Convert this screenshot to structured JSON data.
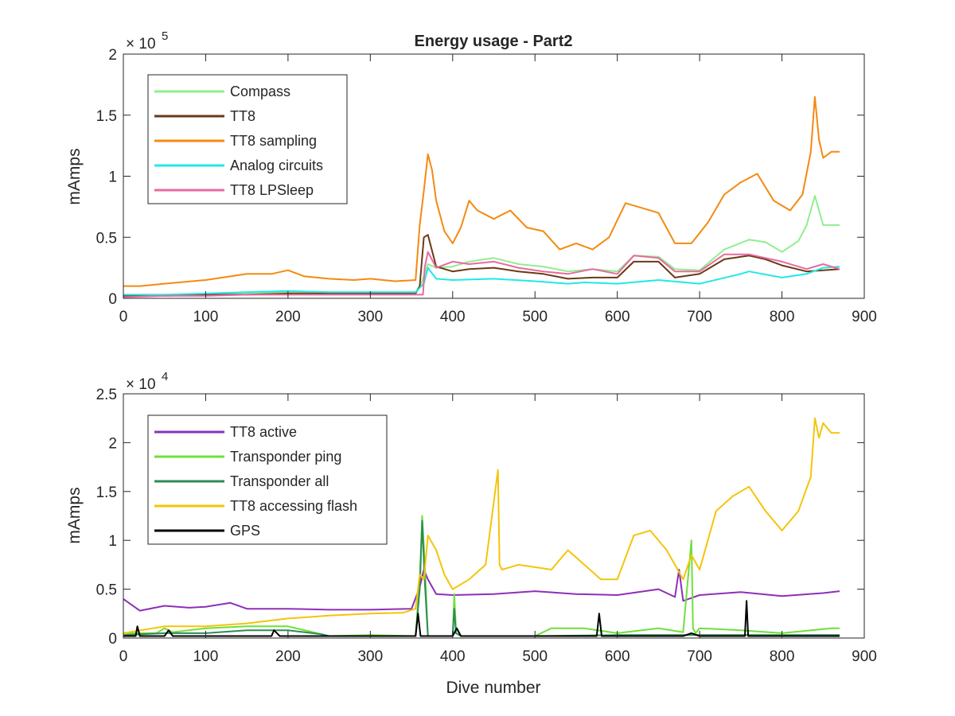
{
  "chart_data": [
    {
      "type": "line",
      "title": "Energy usage - Part2",
      "xlabel": "",
      "ylabel": "mAmps",
      "y_exponent_label": "× 10",
      "y_exponent_power": "5",
      "xlim": [
        0,
        900
      ],
      "ylim": [
        0,
        2
      ],
      "x_ticks": [
        "0",
        "100",
        "200",
        "300",
        "400",
        "500",
        "600",
        "700",
        "800",
        "900"
      ],
      "y_ticks": [
        "0",
        "0.5",
        "1",
        "1.5",
        "2"
      ],
      "grid": false,
      "legend_position": "top-left",
      "series": [
        {
          "name": "Compass",
          "color": "#90ee90",
          "x": [
            0,
            50,
            100,
            150,
            200,
            250,
            300,
            355,
            362,
            370,
            380,
            400,
            420,
            450,
            480,
            510,
            540,
            570,
            600,
            620,
            650,
            670,
            700,
            730,
            760,
            780,
            800,
            820,
            830,
            840,
            850,
            870
          ],
          "y": [
            0.02,
            0.03,
            0.03,
            0.04,
            0.05,
            0.05,
            0.05,
            0.05,
            0.12,
            0.28,
            0.25,
            0.26,
            0.3,
            0.33,
            0.28,
            0.26,
            0.22,
            0.24,
            0.22,
            0.35,
            0.34,
            0.24,
            0.23,
            0.4,
            0.48,
            0.46,
            0.38,
            0.47,
            0.6,
            0.84,
            0.6,
            0.6
          ]
        },
        {
          "name": "TT8",
          "color": "#6a3a14",
          "x": [
            0,
            50,
            100,
            150,
            200,
            250,
            300,
            355,
            360,
            365,
            370,
            380,
            400,
            420,
            450,
            480,
            510,
            540,
            570,
            600,
            620,
            650,
            670,
            700,
            730,
            760,
            780,
            800,
            830,
            850,
            870
          ],
          "y": [
            0.02,
            0.02,
            0.03,
            0.03,
            0.04,
            0.04,
            0.04,
            0.04,
            0.1,
            0.5,
            0.52,
            0.26,
            0.22,
            0.24,
            0.25,
            0.22,
            0.2,
            0.16,
            0.17,
            0.17,
            0.3,
            0.3,
            0.17,
            0.2,
            0.32,
            0.35,
            0.32,
            0.27,
            0.22,
            0.23,
            0.24
          ]
        },
        {
          "name": "TT8 sampling",
          "color": "#f48a10",
          "x": [
            0,
            20,
            50,
            100,
            130,
            150,
            180,
            200,
            220,
            250,
            280,
            300,
            330,
            355,
            360,
            365,
            370,
            375,
            380,
            390,
            400,
            410,
            420,
            430,
            450,
            470,
            490,
            510,
            530,
            550,
            570,
            590,
            610,
            630,
            650,
            670,
            690,
            710,
            730,
            750,
            770,
            790,
            810,
            825,
            835,
            840,
            845,
            850,
            860,
            870
          ],
          "y": [
            0.1,
            0.1,
            0.12,
            0.15,
            0.18,
            0.2,
            0.2,
            0.23,
            0.18,
            0.16,
            0.15,
            0.16,
            0.14,
            0.15,
            0.6,
            0.88,
            1.18,
            1.05,
            0.8,
            0.55,
            0.45,
            0.58,
            0.8,
            0.72,
            0.65,
            0.72,
            0.58,
            0.55,
            0.4,
            0.45,
            0.4,
            0.5,
            0.78,
            0.74,
            0.7,
            0.45,
            0.45,
            0.62,
            0.85,
            0.95,
            1.02,
            0.8,
            0.72,
            0.85,
            1.2,
            1.65,
            1.3,
            1.15,
            1.2,
            1.2
          ]
        },
        {
          "name": "Analog circuits",
          "color": "#22e8e8",
          "x": [
            0,
            50,
            100,
            150,
            200,
            250,
            300,
            355,
            365,
            370,
            380,
            400,
            450,
            500,
            540,
            560,
            600,
            650,
            700,
            750,
            760,
            800,
            830,
            850,
            870
          ],
          "y": [
            0.03,
            0.03,
            0.04,
            0.05,
            0.06,
            0.05,
            0.05,
            0.05,
            0.12,
            0.25,
            0.16,
            0.15,
            0.16,
            0.14,
            0.12,
            0.13,
            0.12,
            0.15,
            0.12,
            0.2,
            0.22,
            0.17,
            0.2,
            0.25,
            0.26
          ]
        },
        {
          "name": "TT8 LPSleep",
          "color": "#e86aa0",
          "x": [
            0,
            50,
            100,
            150,
            200,
            250,
            300,
            355,
            364,
            366,
            370,
            380,
            400,
            420,
            450,
            480,
            510,
            540,
            570,
            600,
            620,
            650,
            670,
            700,
            730,
            760,
            780,
            800,
            830,
            850,
            870
          ],
          "y": [
            0.01,
            0.02,
            0.02,
            0.03,
            0.03,
            0.03,
            0.03,
            0.03,
            0.03,
            0.25,
            0.38,
            0.25,
            0.3,
            0.28,
            0.3,
            0.25,
            0.22,
            0.2,
            0.24,
            0.2,
            0.35,
            0.33,
            0.22,
            0.22,
            0.36,
            0.36,
            0.33,
            0.3,
            0.24,
            0.28,
            0.24
          ]
        }
      ]
    },
    {
      "type": "line",
      "title": "",
      "xlabel": "Dive number",
      "ylabel": "mAmps",
      "y_exponent_label": "× 10",
      "y_exponent_power": "4",
      "xlim": [
        0,
        900
      ],
      "ylim": [
        0,
        2.5
      ],
      "x_ticks": [
        "0",
        "100",
        "200",
        "300",
        "400",
        "500",
        "600",
        "700",
        "800",
        "900"
      ],
      "y_ticks": [
        "0",
        "0.5",
        "1",
        "1.5",
        "2",
        "2.5"
      ],
      "grid": false,
      "legend_position": "top-left",
      "series": [
        {
          "name": "TT8 active",
          "color": "#8e2fb8",
          "x": [
            0,
            20,
            50,
            80,
            100,
            130,
            150,
            200,
            250,
            300,
            350,
            360,
            365,
            370,
            380,
            400,
            450,
            500,
            550,
            600,
            650,
            670,
            675,
            680,
            700,
            750,
            800,
            850,
            870
          ],
          "y": [
            0.4,
            0.28,
            0.33,
            0.31,
            0.32,
            0.36,
            0.3,
            0.3,
            0.29,
            0.29,
            0.3,
            0.52,
            0.7,
            0.6,
            0.45,
            0.44,
            0.45,
            0.48,
            0.45,
            0.44,
            0.5,
            0.42,
            0.7,
            0.38,
            0.44,
            0.47,
            0.43,
            0.46,
            0.48
          ]
        },
        {
          "name": "Transponder ping",
          "color": "#6fe03a",
          "x": [
            0,
            40,
            50,
            60,
            100,
            150,
            200,
            250,
            300,
            355,
            360,
            363,
            366,
            370,
            380,
            400,
            402,
            404,
            410,
            420,
            430,
            500,
            520,
            560,
            600,
            650,
            680,
            690,
            692,
            695,
            700,
            750,
            800,
            860,
            870
          ],
          "y": [
            0.05,
            0.05,
            0.1,
            0.06,
            0.1,
            0.12,
            0.12,
            0.02,
            0.03,
            0.02,
            0.6,
            1.25,
            0.8,
            0.02,
            0.02,
            0.02,
            0.45,
            0.1,
            0.02,
            0.02,
            0.02,
            0.02,
            0.1,
            0.1,
            0.05,
            0.1,
            0.06,
            1.0,
            0.1,
            0.05,
            0.1,
            0.08,
            0.05,
            0.1,
            0.1
          ]
        },
        {
          "name": "Transponder all",
          "color": "#2e8b57",
          "x": [
            0,
            50,
            100,
            150,
            200,
            240,
            250,
            300,
            355,
            360,
            363,
            366,
            370,
            400,
            402,
            404,
            410,
            500,
            600,
            700,
            800,
            870
          ],
          "y": [
            0.03,
            0.05,
            0.05,
            0.08,
            0.08,
            0.04,
            0.02,
            0.02,
            0.02,
            0.5,
            1.2,
            0.6,
            0.02,
            0.02,
            0.3,
            0.05,
            0.02,
            0.02,
            0.03,
            0.03,
            0.03,
            0.03
          ]
        },
        {
          "name": "TT8 accessing flash",
          "color": "#f5c40a",
          "x": [
            0,
            50,
            100,
            150,
            200,
            250,
            300,
            340,
            355,
            360,
            365,
            370,
            380,
            390,
            400,
            420,
            440,
            455,
            457,
            460,
            480,
            520,
            540,
            580,
            600,
            620,
            640,
            660,
            680,
            690,
            700,
            720,
            740,
            760,
            780,
            800,
            820,
            835,
            840,
            845,
            850,
            860,
            870
          ],
          "y": [
            0.05,
            0.12,
            0.12,
            0.15,
            0.2,
            0.23,
            0.25,
            0.26,
            0.3,
            0.65,
            0.6,
            1.05,
            0.9,
            0.65,
            0.5,
            0.6,
            0.75,
            1.72,
            0.75,
            0.7,
            0.75,
            0.7,
            0.9,
            0.6,
            0.6,
            1.05,
            1.1,
            0.9,
            0.6,
            0.85,
            0.7,
            1.3,
            1.45,
            1.55,
            1.3,
            1.1,
            1.3,
            1.65,
            2.25,
            2.05,
            2.2,
            2.1,
            2.1
          ]
        },
        {
          "name": "GPS",
          "color": "#000000",
          "x": [
            0,
            15,
            17,
            20,
            50,
            55,
            60,
            100,
            150,
            180,
            183,
            190,
            250,
            300,
            355,
            358,
            361,
            365,
            370,
            400,
            405,
            410,
            500,
            560,
            575,
            578,
            581,
            600,
            680,
            690,
            700,
            755,
            757,
            759,
            800,
            870
          ],
          "y": [
            0.02,
            0.02,
            0.12,
            0.02,
            0.02,
            0.08,
            0.02,
            0.02,
            0.02,
            0.02,
            0.08,
            0.02,
            0.02,
            0.02,
            0.02,
            0.25,
            0.02,
            0.02,
            0.02,
            0.02,
            0.1,
            0.02,
            0.02,
            0.02,
            0.02,
            0.25,
            0.02,
            0.02,
            0.02,
            0.05,
            0.02,
            0.02,
            0.38,
            0.02,
            0.02,
            0.02
          ]
        }
      ]
    }
  ]
}
